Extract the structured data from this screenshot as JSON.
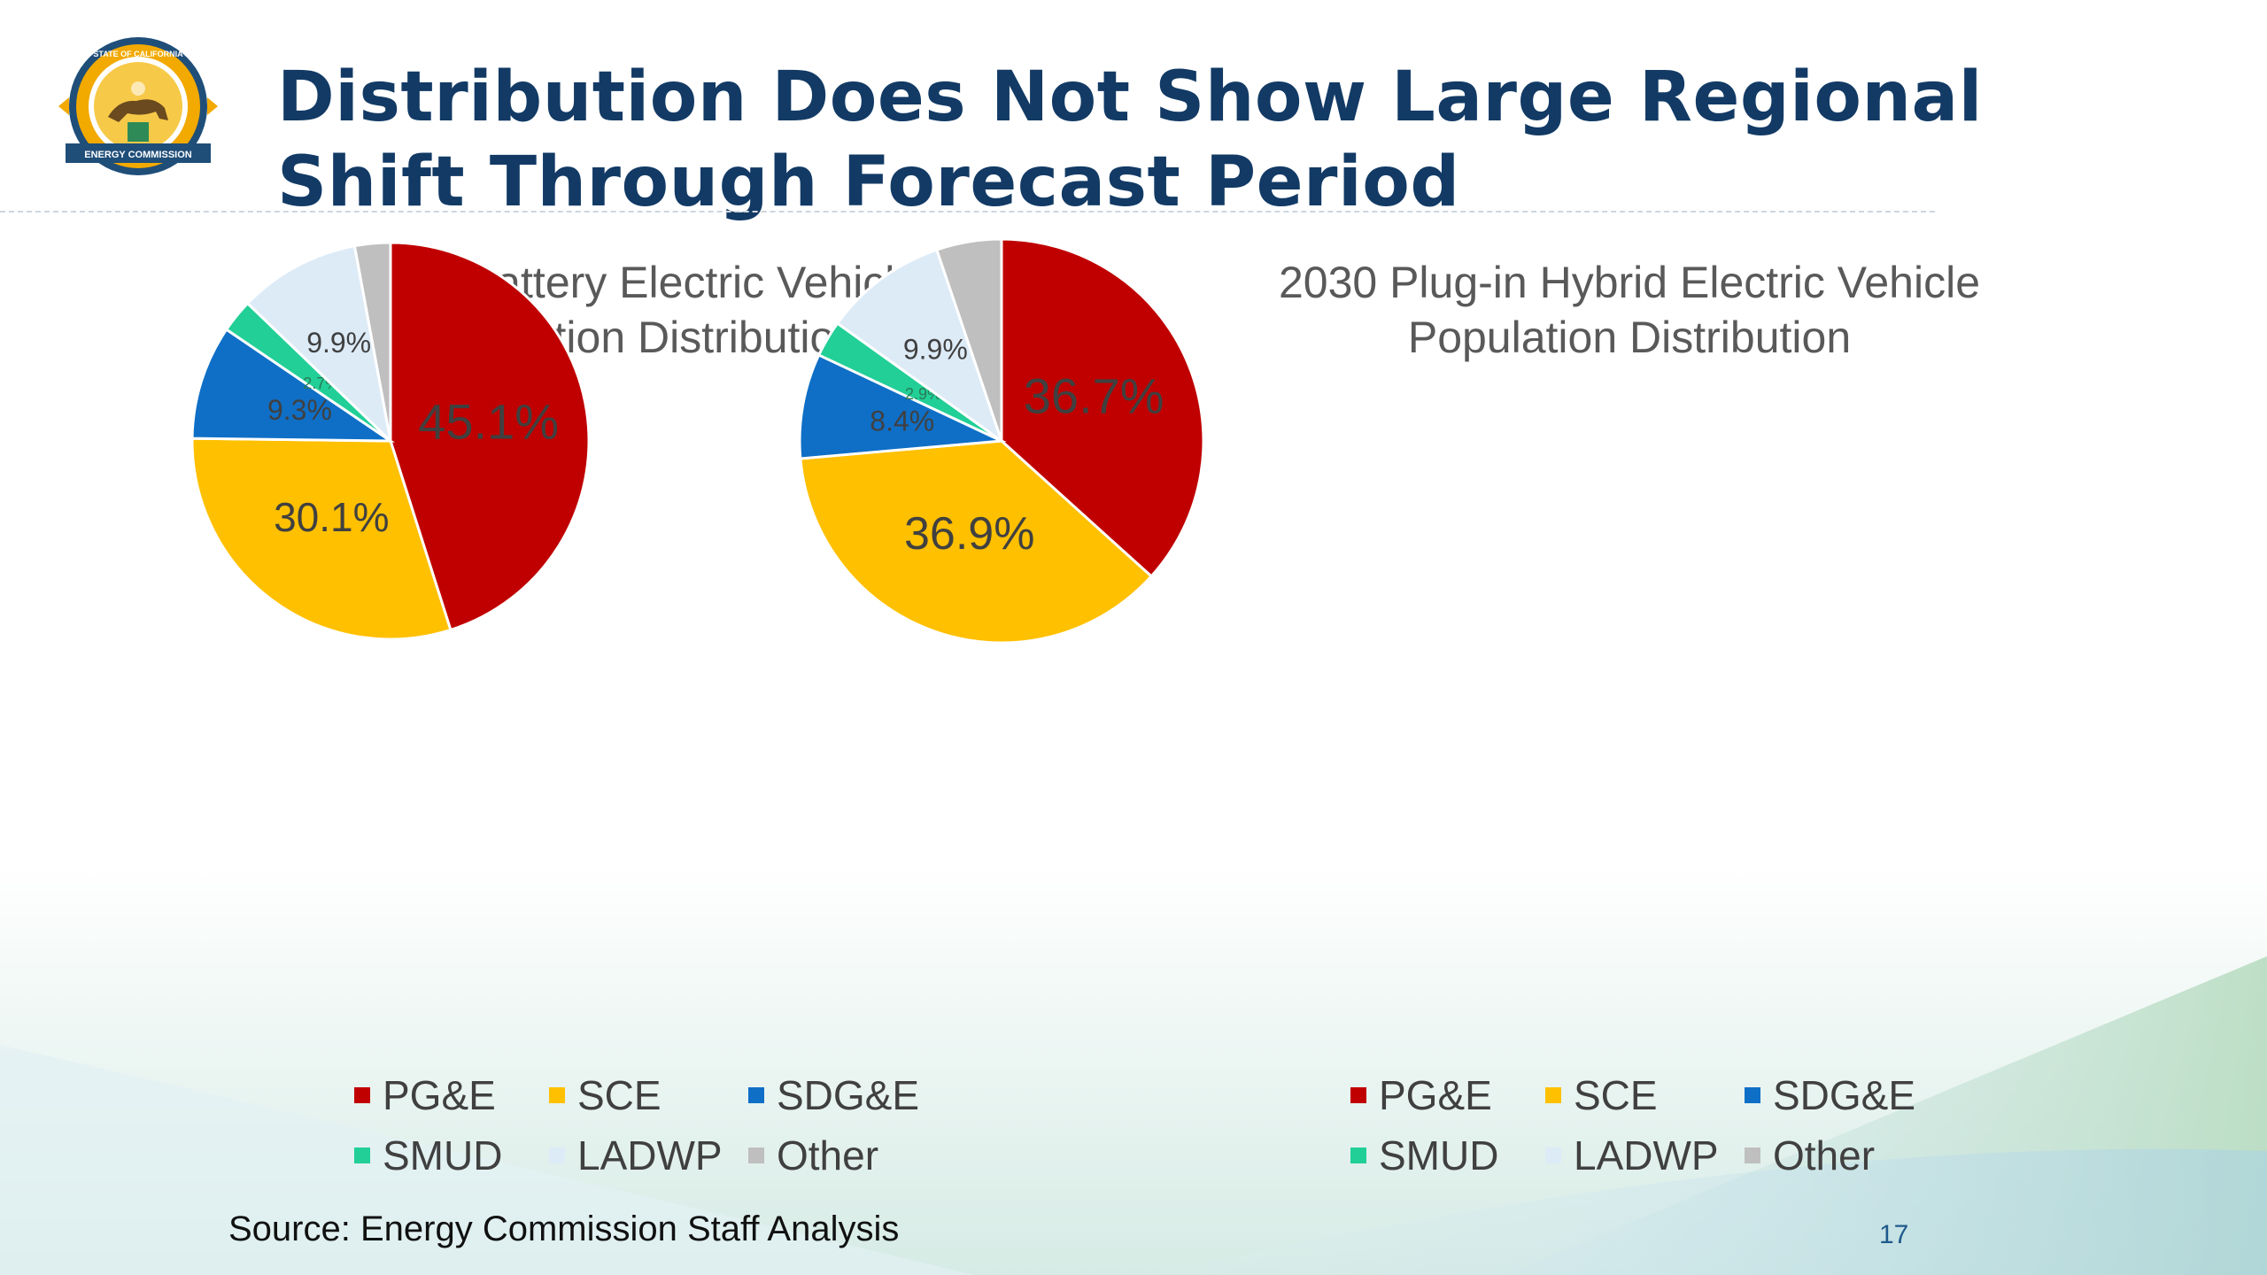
{
  "slide": {
    "title_line1": "Distribution Does Not Show Large Regional",
    "title_line2": "Shift Through Forecast Period",
    "source": "Source: Energy Commission Staff Analysis",
    "page_number": "17"
  },
  "logo": {
    "text_top": "STATE OF CALIFORNIA",
    "text_banner": "ENERGY COMMISSION"
  },
  "colors": {
    "title": "#123a65",
    "PG&E": "#c00000",
    "SCE": "#ffc000",
    "SDG&E": "#0f6fc6",
    "SMUD": "#21cf97",
    "LADWP": "#ddebf7",
    "Other": "#bfbfbf"
  },
  "chart_data": [
    {
      "type": "pie",
      "title_line1": "2030 Battery Electric Vehicle",
      "title_line2": "Population Distribution",
      "categories": [
        "PG&E",
        "SCE",
        "SDG&E",
        "SMUD",
        "LADWP",
        "Other"
      ],
      "values": [
        45.1,
        30.1,
        9.3,
        2.7,
        9.9,
        2.9
      ],
      "labels": [
        "45.1%",
        "30.1%",
        "9.3%",
        "2.7%",
        "9.9%",
        ""
      ],
      "legend_position": "bottom"
    },
    {
      "type": "pie",
      "title_line1": "2030 Plug-in Hybrid Electric Vehicle",
      "title_line2": "Population Distribution",
      "categories": [
        "PG&E",
        "SCE",
        "SDG&E",
        "SMUD",
        "LADWP",
        "Other"
      ],
      "values": [
        36.7,
        36.9,
        8.4,
        2.9,
        9.9,
        5.2
      ],
      "labels": [
        "36.7%",
        "36.9%",
        "8.4%",
        "2.9%",
        "9.9%",
        ""
      ],
      "legend_position": "bottom"
    }
  ]
}
